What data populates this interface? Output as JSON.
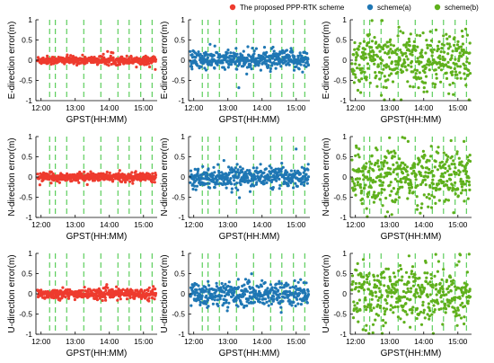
{
  "legend": [
    {
      "label": "The proposed PPP-RTK scheme",
      "color": "#ee3b2e"
    },
    {
      "label": "scheme(a)",
      "color": "#1f77b4"
    },
    {
      "label": "scheme(b)",
      "color": "#5fb01c"
    }
  ],
  "chart_data": {
    "type": "scatter",
    "x_tick_labels": [
      "12:00",
      "13:00",
      "14:00",
      "15:00"
    ],
    "y_tick_labels": [
      "1",
      "0.5",
      "0",
      "-0.5",
      "-1"
    ],
    "xlabel": "GPST(HH:MM)",
    "ylim": [
      -1,
      1
    ],
    "grid": "vertical green dashed lines",
    "panels": [
      {
        "row": 0,
        "col": 0,
        "ylabel": "E-direction error(m)",
        "series": "The proposed PPP-RTK scheme",
        "color": "#ee3b2e",
        "spread_m": 0.05
      },
      {
        "row": 0,
        "col": 1,
        "ylabel": "E-direction error(m)",
        "series": "scheme(a)",
        "color": "#1f77b4",
        "spread_m": 0.12
      },
      {
        "row": 0,
        "col": 2,
        "ylabel": "E-direction error(m)",
        "series": "scheme(b)",
        "color": "#5fb01c",
        "spread_m": 0.35
      },
      {
        "row": 1,
        "col": 0,
        "ylabel": "N-direction error(m)",
        "series": "The proposed PPP-RTK scheme",
        "color": "#ee3b2e",
        "spread_m": 0.05
      },
      {
        "row": 1,
        "col": 1,
        "ylabel": "N-direction error(m)",
        "series": "scheme(a)",
        "color": "#1f77b4",
        "spread_m": 0.12
      },
      {
        "row": 1,
        "col": 2,
        "ylabel": "N-direction error(m)",
        "series": "scheme(b)",
        "color": "#5fb01c",
        "spread_m": 0.35
      },
      {
        "row": 2,
        "col": 0,
        "ylabel": "U-direction error(m)",
        "series": "The proposed PPP-RTK scheme",
        "color": "#ee3b2e",
        "spread_m": 0.06
      },
      {
        "row": 2,
        "col": 1,
        "ylabel": "U-direction error(m)",
        "series": "scheme(a)",
        "color": "#1f77b4",
        "spread_m": 0.15
      },
      {
        "row": 2,
        "col": 2,
        "ylabel": "U-direction error(m)",
        "series": "scheme(b)",
        "color": "#5fb01c",
        "spread_m": 0.35
      }
    ]
  }
}
